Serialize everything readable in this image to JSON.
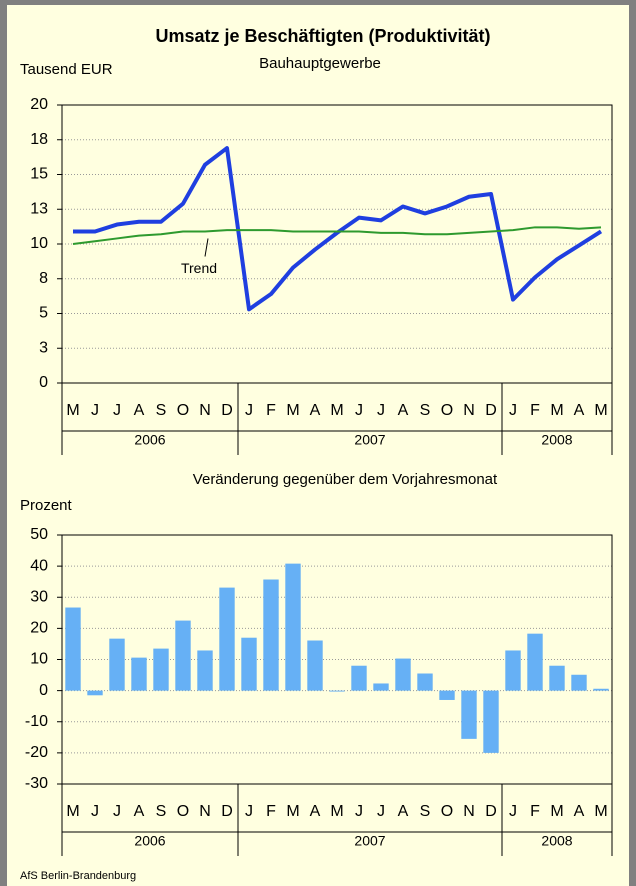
{
  "title": "Umsatz je Beschäftigten (Produktivität)",
  "footer": "AfS Berlin-Brandenburg",
  "chart_data": [
    {
      "type": "line",
      "subtitle": "Bauhauptgewerbe",
      "y_label": "Tausend EUR",
      "categories": [
        "M",
        "J",
        "J",
        "A",
        "S",
        "O",
        "N",
        "D",
        "J",
        "F",
        "M",
        "A",
        "M",
        "J",
        "J",
        "A",
        "S",
        "O",
        "N",
        "D",
        "J",
        "F",
        "M",
        "A",
        "M"
      ],
      "groups": [
        {
          "label": "2006",
          "span": 8
        },
        {
          "label": "2007",
          "span": 12
        },
        {
          "label": "2008",
          "span": 5
        }
      ],
      "series": [
        {
          "color": "#1f3fe0",
          "values": [
            10.9,
            10.9,
            11.4,
            11.6,
            11.6,
            12.9,
            15.7,
            16.9,
            5.3,
            6.4,
            8.3,
            9.6,
            10.8,
            11.9,
            11.7,
            12.7,
            12.2,
            12.7,
            13.4,
            13.6,
            6.0,
            7.6,
            8.9,
            9.9,
            10.9
          ]
        },
        {
          "name": "Trend",
          "color": "#2e9a2e",
          "values": [
            10.0,
            10.2,
            10.4,
            10.6,
            10.7,
            10.9,
            10.9,
            11.0,
            11.0,
            11.0,
            10.9,
            10.9,
            10.9,
            10.9,
            10.8,
            10.8,
            10.7,
            10.7,
            10.8,
            10.9,
            11.0,
            11.2,
            11.2,
            11.1,
            11.2
          ]
        }
      ],
      "ylim": [
        0,
        20
      ],
      "yticks": [
        0,
        {
          "value": 2.5,
          "label": "3"
        },
        5,
        {
          "value": 7.5,
          "label": "8"
        },
        10,
        {
          "value": 12.5,
          "label": "13"
        },
        15,
        {
          "value": 17.5,
          "label": "18"
        },
        20
      ],
      "grid": true
    },
    {
      "type": "bar",
      "title": "Veränderung gegenüber dem Vorjahresmonat",
      "y_label": "Prozent",
      "categories": [
        "M",
        "J",
        "J",
        "A",
        "S",
        "O",
        "N",
        "D",
        "J",
        "F",
        "M",
        "A",
        "M",
        "J",
        "J",
        "A",
        "S",
        "O",
        "N",
        "D",
        "J",
        "F",
        "M",
        "A",
        "M"
      ],
      "groups": [
        {
          "label": "2006",
          "span": 8
        },
        {
          "label": "2007",
          "span": 12
        },
        {
          "label": "2008",
          "span": 5
        }
      ],
      "values": [
        26.7,
        -1.5,
        16.7,
        10.6,
        13.5,
        22.5,
        12.9,
        33.1,
        17.0,
        35.7,
        40.8,
        16.1,
        -0.3,
        8.0,
        2.3,
        10.3,
        5.5,
        -3.0,
        -15.5,
        -20.0,
        12.9,
        18.3,
        8.0,
        5.1,
        0.6
      ],
      "color": "#66b0f5",
      "ylim": [
        -30,
        50
      ],
      "yticks": [
        -30,
        -20,
        -10,
        0,
        10,
        20,
        30,
        40,
        50
      ],
      "grid": true
    }
  ]
}
